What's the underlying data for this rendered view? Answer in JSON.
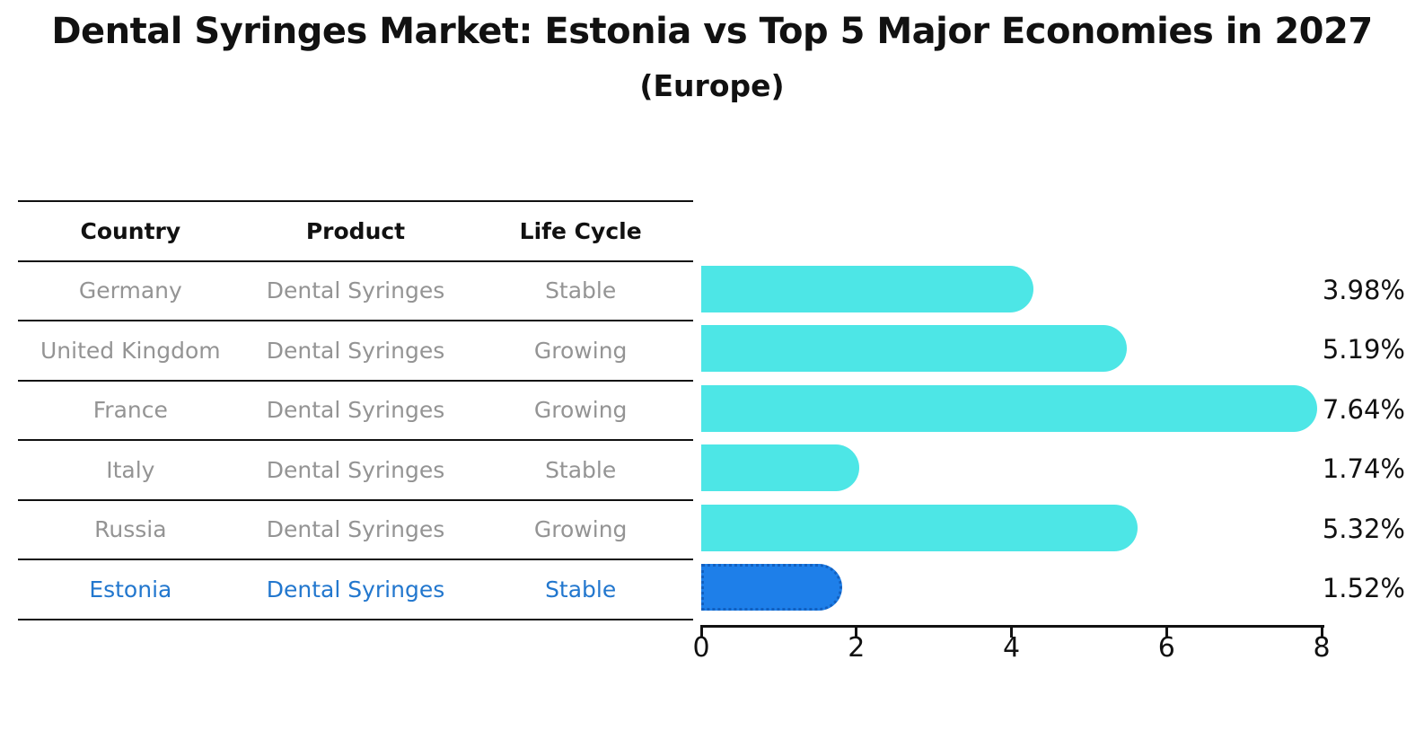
{
  "title": "Dental Syringes Market: Estonia vs Top 5 Major Economies in 2027",
  "subtitle": "(Europe)",
  "table": {
    "headers": [
      "Country",
      "Product",
      "Life Cycle"
    ],
    "rows": [
      {
        "country": "Germany",
        "product": "Dental Syringes",
        "life_cycle": "Stable",
        "highlighted": false
      },
      {
        "country": "United Kingdom",
        "product": "Dental Syringes",
        "life_cycle": "Growing",
        "highlighted": false
      },
      {
        "country": "France",
        "product": "Dental Syringes",
        "life_cycle": "Growing",
        "highlighted": false
      },
      {
        "country": "Italy",
        "product": "Dental Syringes",
        "life_cycle": "Stable",
        "highlighted": false
      },
      {
        "country": "Russia",
        "product": "Dental Syringes",
        "life_cycle": "Growing",
        "highlighted": false
      },
      {
        "country": "Estonia",
        "product": "Dental Syringes",
        "life_cycle": "Stable",
        "highlighted": true
      }
    ]
  },
  "chart_data": {
    "type": "bar",
    "orientation": "horizontal",
    "title": "Dental Syringes Market: Estonia vs Top 5 Major Economies in 2027",
    "subtitle": "(Europe)",
    "categories": [
      "Germany",
      "United Kingdom",
      "France",
      "Italy",
      "Russia",
      "Estonia"
    ],
    "values": [
      3.98,
      5.19,
      7.64,
      1.74,
      5.32,
      1.52
    ],
    "value_labels": [
      "3.98%",
      "5.19%",
      "7.64%",
      "1.74%",
      "5.32%",
      "1.52%"
    ],
    "xlabel": "",
    "ylabel": "",
    "xlim": [
      0,
      8
    ],
    "x_ticks": [
      0,
      2,
      4,
      6,
      8
    ],
    "grid": false,
    "legend": false,
    "highlight_index": 5,
    "bar_color": "#4DE6E6",
    "highlight_bar_color": "#1E7FE9",
    "highlight_border_color": "#1260C0"
  },
  "colors": {
    "text_primary": "#111111",
    "table_text_muted": "#949494",
    "highlight_text": "#2277CE",
    "axis": "#111111",
    "background": "#FFFFFF"
  }
}
